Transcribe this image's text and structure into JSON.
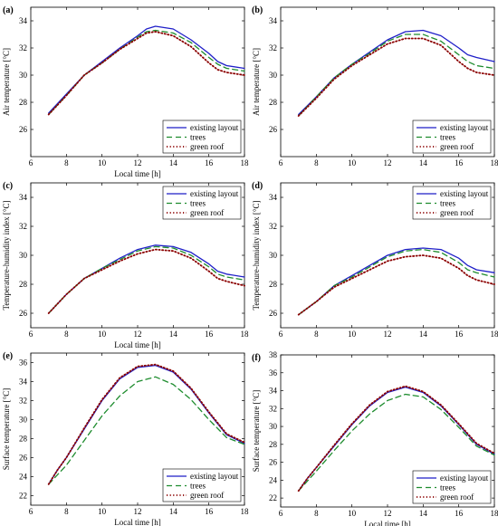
{
  "colors": {
    "existing": "#1f1fc8",
    "trees": "#1e8c2e",
    "green_roof": "#8b0000"
  },
  "legend_labels": [
    "existing layout",
    "trees",
    "green roof"
  ],
  "chart_data": [
    {
      "panel": "(a)",
      "type": "line",
      "xlabel": "Local time [h]",
      "ylabel": "Air temperature [°C]",
      "xlim": [
        6,
        18
      ],
      "ylim": [
        24,
        35
      ],
      "xticks": [
        6,
        8,
        10,
        12,
        14,
        16,
        18
      ],
      "yticks": [
        26,
        28,
        30,
        32,
        34
      ],
      "legend": "bottom-right",
      "x": [
        7,
        8,
        9,
        10,
        11,
        12,
        12.5,
        13,
        14,
        15,
        16,
        16.5,
        17,
        18
      ],
      "series": [
        {
          "name": "existing layout",
          "style": "solid",
          "values": [
            27.2,
            28.6,
            30.0,
            31.0,
            32.0,
            32.9,
            33.4,
            33.6,
            33.4,
            32.6,
            31.6,
            31.0,
            30.7,
            30.5
          ]
        },
        {
          "name": "trees",
          "style": "dashed",
          "values": [
            27.1,
            28.5,
            30.0,
            30.9,
            31.9,
            32.8,
            33.2,
            33.3,
            33.1,
            32.4,
            31.3,
            30.8,
            30.5,
            30.3
          ]
        },
        {
          "name": "green roof",
          "style": "dotted",
          "values": [
            27.1,
            28.5,
            30.0,
            30.9,
            31.9,
            32.7,
            33.1,
            33.2,
            32.9,
            32.1,
            30.9,
            30.4,
            30.2,
            30.0
          ]
        }
      ]
    },
    {
      "panel": "(b)",
      "type": "line",
      "xlabel": "",
      "ylabel": "Air temperature [°C]",
      "xlim": [
        6,
        18
      ],
      "ylim": [
        24,
        35
      ],
      "xticks": [
        6,
        8,
        10,
        12,
        14,
        16,
        18
      ],
      "yticks": [
        26,
        28,
        30,
        32,
        34
      ],
      "legend": "bottom-right",
      "x": [
        7,
        8,
        9,
        10,
        11,
        12,
        13,
        14,
        15,
        16,
        16.5,
        17,
        18
      ],
      "series": [
        {
          "name": "existing layout",
          "style": "solid",
          "values": [
            27.1,
            28.4,
            29.8,
            30.8,
            31.7,
            32.6,
            33.2,
            33.3,
            32.9,
            32.0,
            31.5,
            31.3,
            31.0
          ]
        },
        {
          "name": "trees",
          "style": "dashed",
          "values": [
            27.0,
            28.4,
            29.8,
            30.8,
            31.6,
            32.5,
            33.0,
            33.0,
            32.5,
            31.5,
            31.0,
            30.7,
            30.5
          ]
        },
        {
          "name": "green roof",
          "style": "dotted",
          "values": [
            27.0,
            28.3,
            29.7,
            30.7,
            31.5,
            32.3,
            32.7,
            32.7,
            32.2,
            31.0,
            30.5,
            30.2,
            30.0
          ]
        }
      ]
    },
    {
      "panel": "(c)",
      "type": "line",
      "xlabel": "Local time [h]",
      "ylabel": "Temperature-humidity index [°C]",
      "xlim": [
        6,
        18
      ],
      "ylim": [
        25,
        35
      ],
      "xticks": [
        6,
        8,
        10,
        12,
        14,
        16,
        18
      ],
      "yticks": [
        26,
        28,
        30,
        32,
        34
      ],
      "legend": "top-right",
      "x": [
        7,
        8,
        9,
        10,
        11,
        12,
        13,
        14,
        15,
        16,
        16.5,
        17,
        18
      ],
      "series": [
        {
          "name": "existing layout",
          "style": "solid",
          "values": [
            26.0,
            27.3,
            28.4,
            29.1,
            29.8,
            30.4,
            30.7,
            30.6,
            30.2,
            29.4,
            28.9,
            28.7,
            28.5
          ]
        },
        {
          "name": "trees",
          "style": "dashed",
          "values": [
            26.0,
            27.3,
            28.4,
            29.1,
            29.7,
            30.3,
            30.6,
            30.5,
            30.0,
            29.2,
            28.7,
            28.5,
            28.3
          ]
        },
        {
          "name": "green roof",
          "style": "dotted",
          "values": [
            26.0,
            27.3,
            28.4,
            29.0,
            29.6,
            30.1,
            30.4,
            30.3,
            29.8,
            28.9,
            28.4,
            28.2,
            27.9
          ]
        }
      ]
    },
    {
      "panel": "(d)",
      "type": "line",
      "xlabel": "",
      "ylabel": "Temperature-humidity index [°C]",
      "xlim": [
        6,
        18
      ],
      "ylim": [
        25,
        35
      ],
      "xticks": [
        6,
        8,
        10,
        12,
        14,
        16,
        18
      ],
      "yticks": [
        26,
        28,
        30,
        32,
        34
      ],
      "legend": "top-right",
      "x": [
        7,
        8,
        9,
        10,
        11,
        12,
        13,
        14,
        15,
        16,
        16.5,
        17,
        18
      ],
      "series": [
        {
          "name": "existing layout",
          "style": "solid",
          "values": [
            25.9,
            26.8,
            27.9,
            28.6,
            29.3,
            30.0,
            30.4,
            30.5,
            30.4,
            29.8,
            29.3,
            29.0,
            28.8
          ]
        },
        {
          "name": "trees",
          "style": "dashed",
          "values": [
            25.9,
            26.8,
            27.9,
            28.5,
            29.2,
            29.9,
            30.3,
            30.4,
            30.2,
            29.5,
            29.0,
            28.8,
            28.5
          ]
        },
        {
          "name": "green roof",
          "style": "dotted",
          "values": [
            25.9,
            26.8,
            27.8,
            28.4,
            29.0,
            29.6,
            29.9,
            30.0,
            29.8,
            29.1,
            28.6,
            28.3,
            28.0
          ]
        }
      ]
    },
    {
      "panel": "(e)",
      "type": "line",
      "xlabel": "Local time [h]",
      "ylabel": "Surface temperature [°C]",
      "xlim": [
        6,
        18
      ],
      "ylim": [
        21,
        37
      ],
      "xticks": [
        6,
        8,
        10,
        12,
        14,
        16,
        18
      ],
      "yticks": [
        22,
        24,
        26,
        28,
        30,
        32,
        34,
        36
      ],
      "legend": "bottom-right",
      "x": [
        7,
        7.5,
        8,
        9,
        10,
        11,
        12,
        13,
        14,
        15,
        16,
        17,
        18
      ],
      "series": [
        {
          "name": "existing layout",
          "style": "solid",
          "values": [
            23.2,
            24.7,
            26.0,
            29.0,
            32.0,
            34.3,
            35.5,
            35.7,
            35.0,
            33.2,
            30.7,
            28.4,
            27.5
          ]
        },
        {
          "name": "trees",
          "style": "dashed",
          "values": [
            23.2,
            24.2,
            25.2,
            27.8,
            30.4,
            32.5,
            34.0,
            34.5,
            33.7,
            32.1,
            30.0,
            28.1,
            27.4
          ]
        },
        {
          "name": "green roof",
          "style": "dotted",
          "values": [
            23.2,
            24.7,
            26.0,
            29.1,
            32.1,
            34.4,
            35.6,
            35.8,
            35.1,
            33.3,
            30.8,
            28.5,
            27.6
          ]
        }
      ]
    },
    {
      "panel": "(f)",
      "type": "line",
      "xlabel": "Local time [h]",
      "ylabel": "Surface temperature [°C]",
      "xlim": [
        6,
        18
      ],
      "ylim": [
        21,
        38
      ],
      "xticks": [
        6,
        8,
        10,
        12,
        14,
        16,
        18
      ],
      "yticks": [
        22,
        24,
        26,
        28,
        30,
        32,
        34,
        36,
        38
      ],
      "legend": "bottom-right",
      "x": [
        7,
        7.5,
        8,
        9,
        10,
        11,
        12,
        13,
        14,
        15,
        16,
        17,
        18
      ],
      "series": [
        {
          "name": "existing layout",
          "style": "solid",
          "values": [
            22.8,
            24.2,
            25.4,
            27.8,
            30.2,
            32.3,
            33.8,
            34.4,
            33.8,
            32.3,
            30.2,
            28.0,
            26.9
          ]
        },
        {
          "name": "trees",
          "style": "dashed",
          "values": [
            22.8,
            23.9,
            25.0,
            27.3,
            29.5,
            31.4,
            32.9,
            33.6,
            33.3,
            31.9,
            29.9,
            27.8,
            26.8
          ]
        },
        {
          "name": "green roof",
          "style": "dotted",
          "values": [
            22.8,
            24.2,
            25.4,
            27.9,
            30.3,
            32.4,
            33.9,
            34.5,
            33.9,
            32.4,
            30.3,
            28.1,
            27.0
          ]
        }
      ]
    }
  ]
}
